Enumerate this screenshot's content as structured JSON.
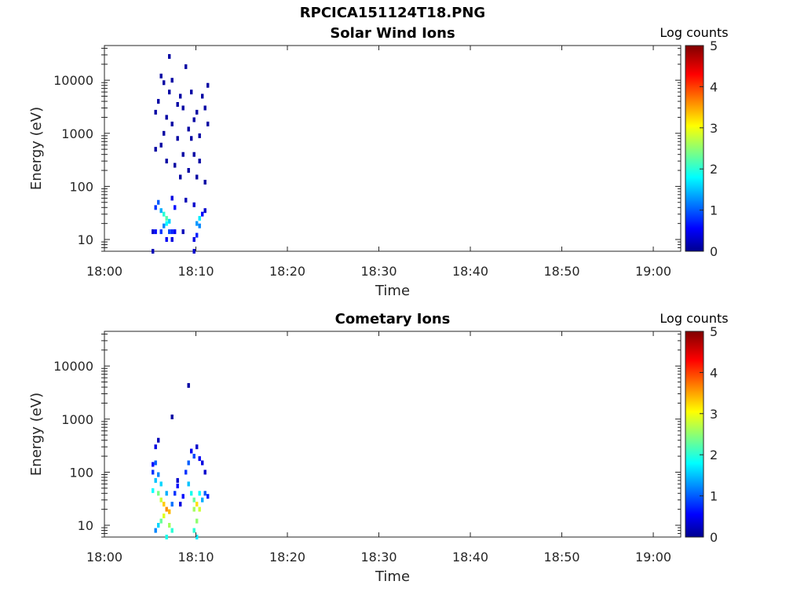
{
  "figure": {
    "title": "RPCICA151124T18.PNG"
  },
  "colors": {
    "axes": "#262626",
    "colormap": "jet",
    "colormap_stops": [
      "#00008f",
      "#0000ff",
      "#00ffff",
      "#ffff00",
      "#ff0000",
      "#800000"
    ]
  },
  "chart_data": [
    {
      "type": "heatmap",
      "title": "Solar Wind Ions",
      "xlabel": "Time",
      "ylabel": "Energy (eV)",
      "x_ticks": [
        "18:00",
        "18:10",
        "18:20",
        "18:30",
        "18:40",
        "18:50",
        "19:00"
      ],
      "x_range": [
        "18:00",
        "19:03"
      ],
      "y_scale": "log",
      "y_ticks": [
        10,
        100,
        1000,
        10000
      ],
      "y_range": [
        6,
        45000
      ],
      "colorbar": {
        "label": "Log counts",
        "range": [
          0,
          5
        ],
        "ticks": [
          0,
          1,
          2,
          3,
          4,
          5
        ]
      },
      "cells": [
        {
          "t": 5.3,
          "e": 6,
          "v": 0.2
        },
        {
          "t": 5.3,
          "e": 14,
          "v": 0.3
        },
        {
          "t": 5.6,
          "e": 14,
          "v": 0.6
        },
        {
          "t": 5.6,
          "e": 40,
          "v": 0.8
        },
        {
          "t": 5.9,
          "e": 50,
          "v": 1.0
        },
        {
          "t": 6.2,
          "e": 35,
          "v": 1.4
        },
        {
          "t": 6.5,
          "e": 30,
          "v": 2.0
        },
        {
          "t": 6.8,
          "e": 25,
          "v": 2.2
        },
        {
          "t": 6.8,
          "e": 20,
          "v": 1.8
        },
        {
          "t": 7.1,
          "e": 22,
          "v": 1.6
        },
        {
          "t": 6.5,
          "e": 18,
          "v": 1.2
        },
        {
          "t": 6.2,
          "e": 14,
          "v": 0.8
        },
        {
          "t": 7.1,
          "e": 14,
          "v": 0.9
        },
        {
          "t": 7.4,
          "e": 14,
          "v": 0.7
        },
        {
          "t": 6.8,
          "e": 10,
          "v": 0.5
        },
        {
          "t": 7.4,
          "e": 10,
          "v": 0.4
        },
        {
          "t": 7.7,
          "e": 14,
          "v": 0.5
        },
        {
          "t": 8.6,
          "e": 14,
          "v": 0.2
        },
        {
          "t": 9.8,
          "e": 6,
          "v": 0.3
        },
        {
          "t": 10.1,
          "e": 20,
          "v": 1.3
        },
        {
          "t": 10.4,
          "e": 25,
          "v": 1.7
        },
        {
          "t": 10.4,
          "e": 18,
          "v": 1.2
        },
        {
          "t": 10.1,
          "e": 12,
          "v": 0.7
        },
        {
          "t": 9.8,
          "e": 10,
          "v": 0.4
        },
        {
          "t": 10.7,
          "e": 30,
          "v": 0.6
        },
        {
          "t": 11.0,
          "e": 35,
          "v": 0.3
        },
        {
          "t": 7.7,
          "e": 40,
          "v": 0.6
        },
        {
          "t": 7.4,
          "e": 60,
          "v": 0.4
        },
        {
          "t": 8.9,
          "e": 55,
          "v": 0.2
        },
        {
          "t": 9.8,
          "e": 45,
          "v": 0.3
        },
        {
          "t": 5.6,
          "e": 2500,
          "v": 0.1
        },
        {
          "t": 6.2,
          "e": 12000,
          "v": 0.1
        },
        {
          "t": 6.5,
          "e": 9000,
          "v": 0.1
        },
        {
          "t": 7.1,
          "e": 6000,
          "v": 0.1
        },
        {
          "t": 5.9,
          "e": 4000,
          "v": 0.1
        },
        {
          "t": 6.8,
          "e": 2000,
          "v": 0.1
        },
        {
          "t": 7.4,
          "e": 1500,
          "v": 0.1
        },
        {
          "t": 8.0,
          "e": 800,
          "v": 0.1
        },
        {
          "t": 8.3,
          "e": 5000,
          "v": 0.1
        },
        {
          "t": 8.6,
          "e": 3000,
          "v": 0.1
        },
        {
          "t": 9.2,
          "e": 1200,
          "v": 0.1
        },
        {
          "t": 9.5,
          "e": 6000,
          "v": 0.1
        },
        {
          "t": 9.8,
          "e": 400,
          "v": 0.1
        },
        {
          "t": 10.1,
          "e": 2500,
          "v": 0.1
        },
        {
          "t": 10.4,
          "e": 900,
          "v": 0.1
        },
        {
          "t": 10.7,
          "e": 5000,
          "v": 0.1
        },
        {
          "t": 11.0,
          "e": 3000,
          "v": 0.1
        },
        {
          "t": 11.3,
          "e": 8000,
          "v": 0.1
        },
        {
          "t": 7.1,
          "e": 28000,
          "v": 0.1
        },
        {
          "t": 8.9,
          "e": 18000,
          "v": 0.1
        },
        {
          "t": 6.2,
          "e": 600,
          "v": 0.1
        },
        {
          "t": 6.8,
          "e": 300,
          "v": 0.1
        },
        {
          "t": 7.7,
          "e": 250,
          "v": 0.1
        },
        {
          "t": 8.3,
          "e": 150,
          "v": 0.1
        },
        {
          "t": 9.2,
          "e": 200,
          "v": 0.1
        },
        {
          "t": 10.4,
          "e": 300,
          "v": 0.1
        },
        {
          "t": 11.0,
          "e": 120,
          "v": 0.1
        },
        {
          "t": 5.6,
          "e": 500,
          "v": 0.1
        },
        {
          "t": 6.5,
          "e": 1000,
          "v": 0.1
        },
        {
          "t": 8.0,
          "e": 3500,
          "v": 0.1
        },
        {
          "t": 9.5,
          "e": 800,
          "v": 0.1
        },
        {
          "t": 10.1,
          "e": 150,
          "v": 0.1
        },
        {
          "t": 9.8,
          "e": 1800,
          "v": 0.1
        },
        {
          "t": 7.4,
          "e": 10000,
          "v": 0.1
        },
        {
          "t": 8.6,
          "e": 400,
          "v": 0.1
        },
        {
          "t": 11.3,
          "e": 1500,
          "v": 0.1
        }
      ]
    },
    {
      "type": "heatmap",
      "title": "Cometary Ions",
      "xlabel": "Time",
      "ylabel": "Energy (eV)",
      "x_ticks": [
        "18:00",
        "18:10",
        "18:20",
        "18:30",
        "18:40",
        "18:50",
        "19:00"
      ],
      "x_range": [
        "18:00",
        "19:03"
      ],
      "y_scale": "log",
      "y_ticks": [
        10,
        100,
        1000,
        10000
      ],
      "y_range": [
        6,
        45000
      ],
      "colorbar": {
        "label": "Log counts",
        "range": [
          0,
          5
        ],
        "ticks": [
          0,
          1,
          2,
          3,
          4,
          5
        ]
      },
      "cells": [
        {
          "t": 5.3,
          "e": 140,
          "v": 0.6
        },
        {
          "t": 5.3,
          "e": 100,
          "v": 0.8
        },
        {
          "t": 5.3,
          "e": 45,
          "v": 1.8
        },
        {
          "t": 5.6,
          "e": 300,
          "v": 0.4
        },
        {
          "t": 5.6,
          "e": 150,
          "v": 1.0
        },
        {
          "t": 5.6,
          "e": 70,
          "v": 1.5
        },
        {
          "t": 5.9,
          "e": 40,
          "v": 2.4
        },
        {
          "t": 6.2,
          "e": 30,
          "v": 2.8
        },
        {
          "t": 6.5,
          "e": 25,
          "v": 3.3
        },
        {
          "t": 6.8,
          "e": 20,
          "v": 3.6
        },
        {
          "t": 7.1,
          "e": 18,
          "v": 3.4
        },
        {
          "t": 6.5,
          "e": 15,
          "v": 2.9
        },
        {
          "t": 6.2,
          "e": 12,
          "v": 2.3
        },
        {
          "t": 5.9,
          "e": 10,
          "v": 1.6
        },
        {
          "t": 5.6,
          "e": 8,
          "v": 1.2
        },
        {
          "t": 7.1,
          "e": 10,
          "v": 2.6
        },
        {
          "t": 7.4,
          "e": 8,
          "v": 2.0
        },
        {
          "t": 6.8,
          "e": 6,
          "v": 1.9
        },
        {
          "t": 5.9,
          "e": 90,
          "v": 1.2
        },
        {
          "t": 6.2,
          "e": 60,
          "v": 1.6
        },
        {
          "t": 6.8,
          "e": 40,
          "v": 1.4
        },
        {
          "t": 7.4,
          "e": 25,
          "v": 1.1
        },
        {
          "t": 7.7,
          "e": 40,
          "v": 0.8
        },
        {
          "t": 8.0,
          "e": 55,
          "v": 0.6
        },
        {
          "t": 8.3,
          "e": 25,
          "v": 0.4
        },
        {
          "t": 8.6,
          "e": 35,
          "v": 0.6
        },
        {
          "t": 8.9,
          "e": 100,
          "v": 0.8
        },
        {
          "t": 9.2,
          "e": 150,
          "v": 1.0
        },
        {
          "t": 9.2,
          "e": 60,
          "v": 1.5
        },
        {
          "t": 9.5,
          "e": 40,
          "v": 1.9
        },
        {
          "t": 9.8,
          "e": 30,
          "v": 2.3
        },
        {
          "t": 9.8,
          "e": 20,
          "v": 2.6
        },
        {
          "t": 10.1,
          "e": 25,
          "v": 3.2
        },
        {
          "t": 10.4,
          "e": 20,
          "v": 2.8
        },
        {
          "t": 10.1,
          "e": 12,
          "v": 2.5
        },
        {
          "t": 9.8,
          "e": 8,
          "v": 2.0
        },
        {
          "t": 10.1,
          "e": 6,
          "v": 1.7
        },
        {
          "t": 10.4,
          "e": 40,
          "v": 1.8
        },
        {
          "t": 10.7,
          "e": 30,
          "v": 1.4
        },
        {
          "t": 11.0,
          "e": 40,
          "v": 1.0
        },
        {
          "t": 11.3,
          "e": 35,
          "v": 0.7
        },
        {
          "t": 9.5,
          "e": 250,
          "v": 0.5
        },
        {
          "t": 9.8,
          "e": 200,
          "v": 0.9
        },
        {
          "t": 10.1,
          "e": 300,
          "v": 0.3
        },
        {
          "t": 10.4,
          "e": 180,
          "v": 0.5
        },
        {
          "t": 10.7,
          "e": 150,
          "v": 0.4
        },
        {
          "t": 11.0,
          "e": 100,
          "v": 0.3
        },
        {
          "t": 7.4,
          "e": 1100,
          "v": 0.1
        },
        {
          "t": 9.2,
          "e": 4300,
          "v": 0.1
        },
        {
          "t": 5.9,
          "e": 400,
          "v": 0.2
        },
        {
          "t": 8.0,
          "e": 70,
          "v": 0.3
        }
      ]
    }
  ]
}
